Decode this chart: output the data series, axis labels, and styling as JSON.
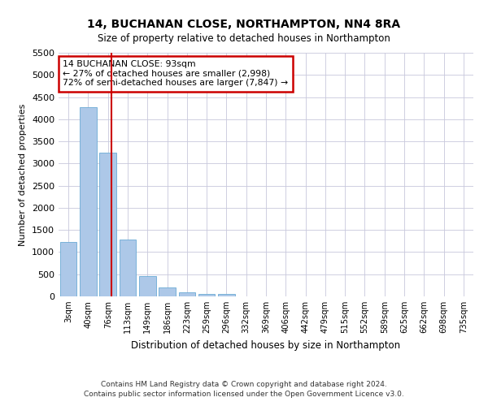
{
  "title": "14, BUCHANAN CLOSE, NORTHAMPTON, NN4 8RA",
  "subtitle": "Size of property relative to detached houses in Northampton",
  "xlabel": "Distribution of detached houses by size in Northampton",
  "ylabel": "Number of detached properties",
  "footer1": "Contains HM Land Registry data © Crown copyright and database right 2024.",
  "footer2": "Contains public sector information licensed under the Open Government Licence v3.0.",
  "annotation_title": "14 BUCHANAN CLOSE: 93sqm",
  "annotation_line1": "← 27% of detached houses are smaller (2,998)",
  "annotation_line2": "72% of semi-detached houses are larger (7,847) →",
  "bar_color": "#adc8e8",
  "bar_edge_color": "#6aaad4",
  "redline_color": "#cc0000",
  "annotation_box_color": "#cc0000",
  "categories": [
    "3sqm",
    "40sqm",
    "76sqm",
    "113sqm",
    "149sqm",
    "186sqm",
    "223sqm",
    "259sqm",
    "296sqm",
    "332sqm",
    "369sqm",
    "406sqm",
    "442sqm",
    "479sqm",
    "515sqm",
    "552sqm",
    "589sqm",
    "625sqm",
    "662sqm",
    "698sqm",
    "735sqm"
  ],
  "values": [
    1230,
    4280,
    3250,
    1280,
    460,
    210,
    90,
    55,
    50,
    0,
    0,
    0,
    0,
    0,
    0,
    0,
    0,
    0,
    0,
    0,
    0
  ],
  "ylim": [
    0,
    5500
  ],
  "yticks": [
    0,
    500,
    1000,
    1500,
    2000,
    2500,
    3000,
    3500,
    4000,
    4500,
    5000,
    5500
  ],
  "redline_x": 2.18,
  "background_color": "#ffffff",
  "grid_color": "#c8c8dc"
}
